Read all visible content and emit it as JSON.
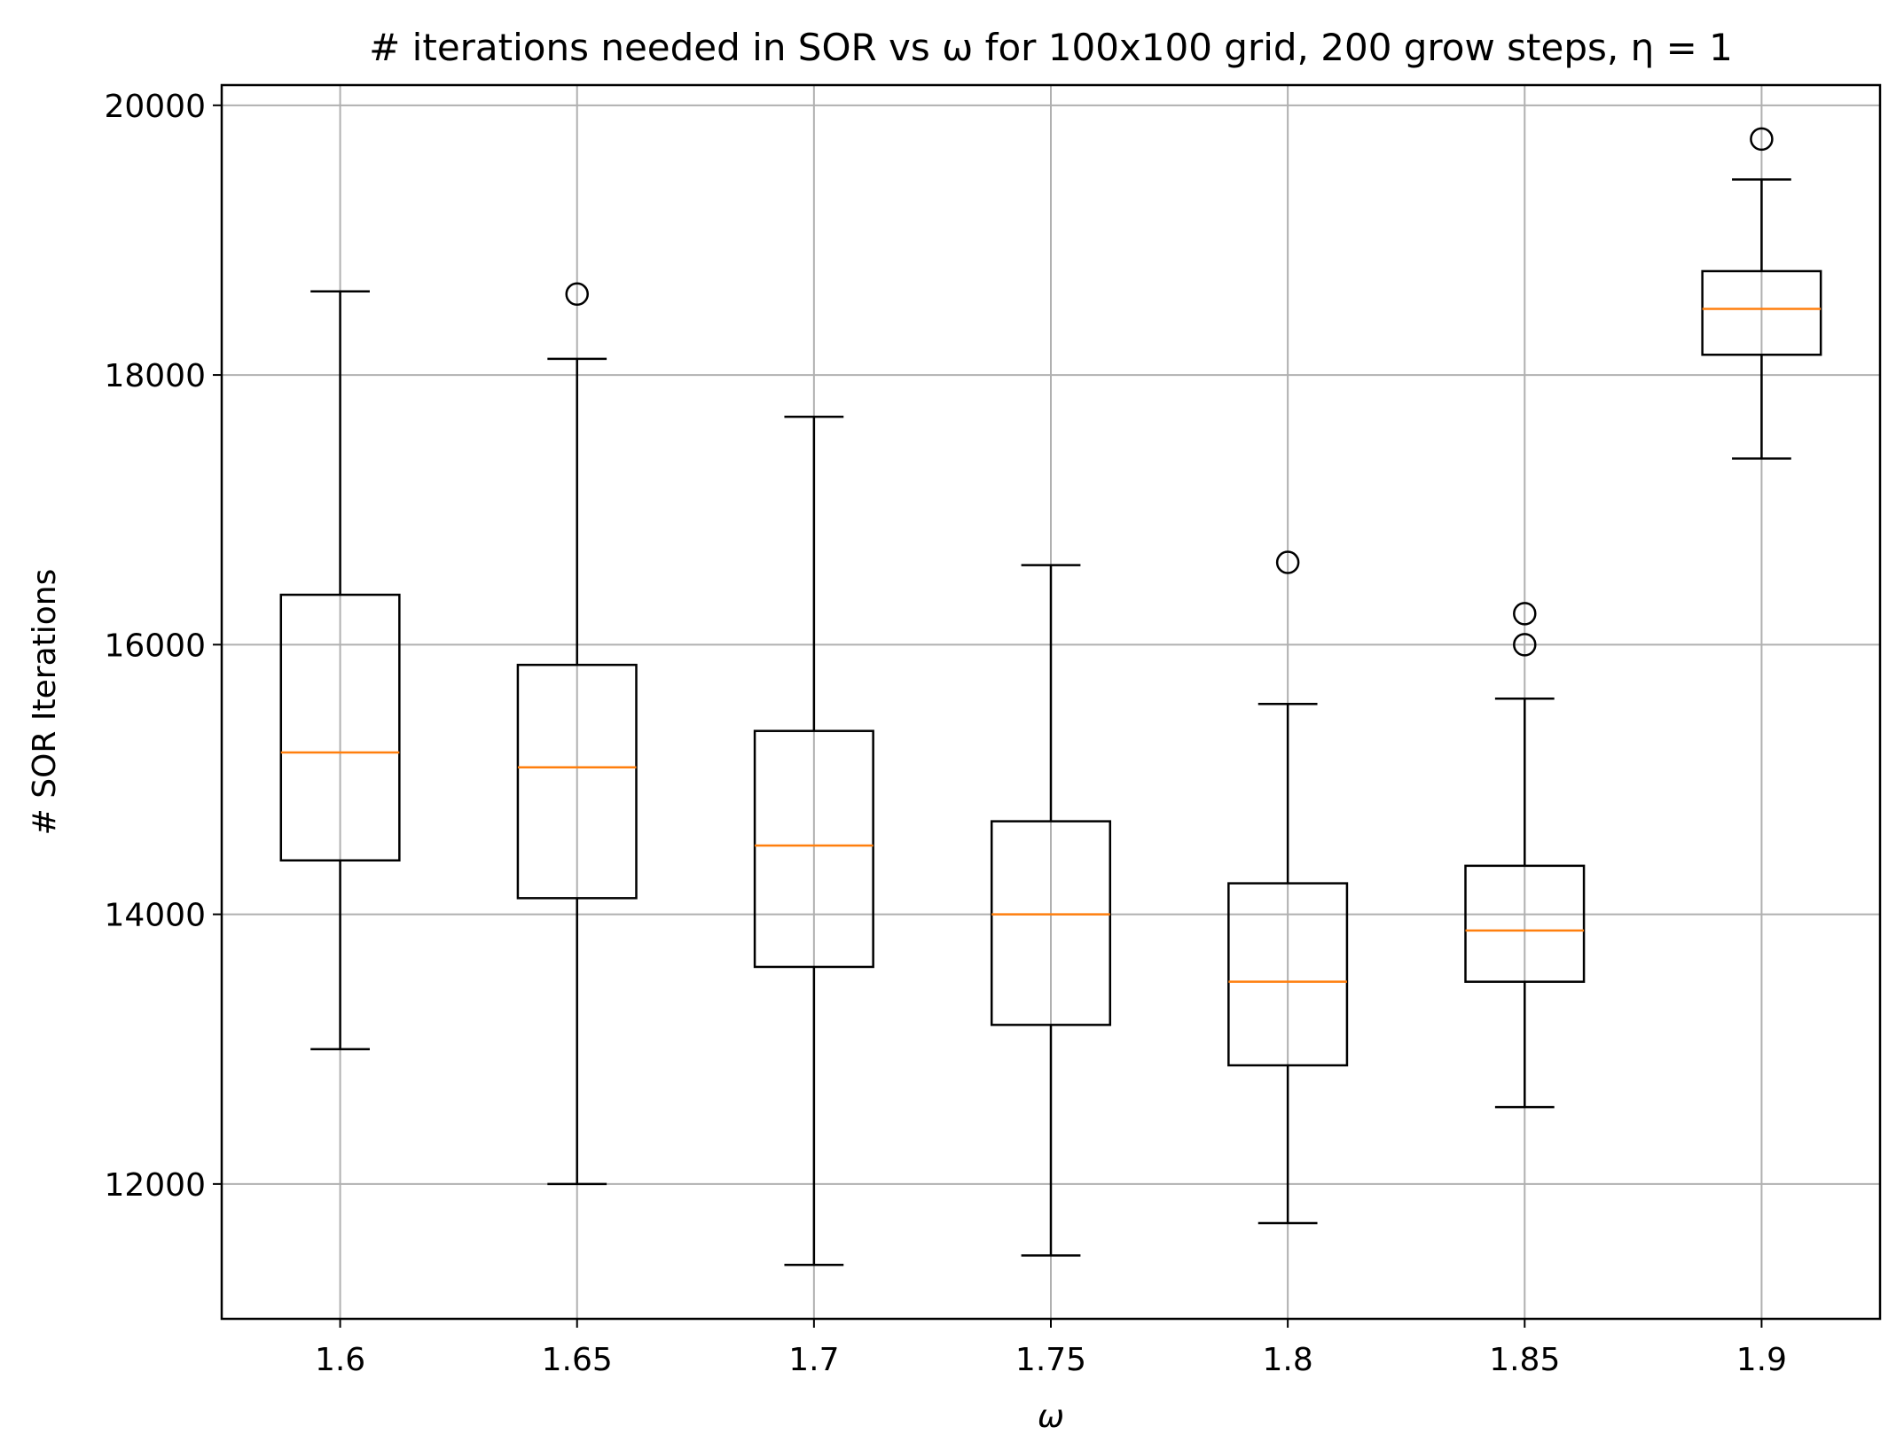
{
  "chart_data": {
    "type": "box",
    "title": "# iterations needed in SOR vs ω for 100x100 grid, 200 grow steps, η = 1",
    "xlabel": "ω",
    "ylabel": "# SOR Iterations",
    "categories": [
      "1.6",
      "1.65",
      "1.7",
      "1.75",
      "1.8",
      "1.85",
      "1.9"
    ],
    "y_ticks": [
      12000,
      14000,
      16000,
      18000,
      20000
    ],
    "y_tick_labels": [
      "12000",
      "14000",
      "16000",
      "18000",
      "20000"
    ],
    "ylim": [
      11000,
      20150
    ],
    "grid": true,
    "boxes": [
      {
        "whisker_low": 13000,
        "q1": 14400,
        "median": 15200,
        "q3": 16370,
        "whisker_high": 18620,
        "outliers": []
      },
      {
        "whisker_low": 12000,
        "q1": 14120,
        "median": 15090,
        "q3": 15850,
        "whisker_high": 18120,
        "outliers": [
          18600
        ]
      },
      {
        "whisker_low": 11400,
        "q1": 13610,
        "median": 14510,
        "q3": 15360,
        "whisker_high": 17690,
        "outliers": []
      },
      {
        "whisker_low": 11470,
        "q1": 13180,
        "median": 14000,
        "q3": 14690,
        "whisker_high": 16590,
        "outliers": []
      },
      {
        "whisker_low": 11710,
        "q1": 12880,
        "median": 13500,
        "q3": 14230,
        "whisker_high": 15560,
        "outliers": [
          16610
        ]
      },
      {
        "whisker_low": 12570,
        "q1": 13500,
        "median": 13880,
        "q3": 14360,
        "whisker_high": 15600,
        "outliers": [
          16000,
          16230
        ]
      },
      {
        "whisker_low": 17380,
        "q1": 18150,
        "median": 18490,
        "q3": 18770,
        "whisker_high": 19450,
        "outliers": [
          19750
        ]
      }
    ],
    "colors": {
      "box": "#000000",
      "median": "#ff7f0e",
      "grid": "#b0b0b0",
      "background": "#ffffff"
    }
  }
}
